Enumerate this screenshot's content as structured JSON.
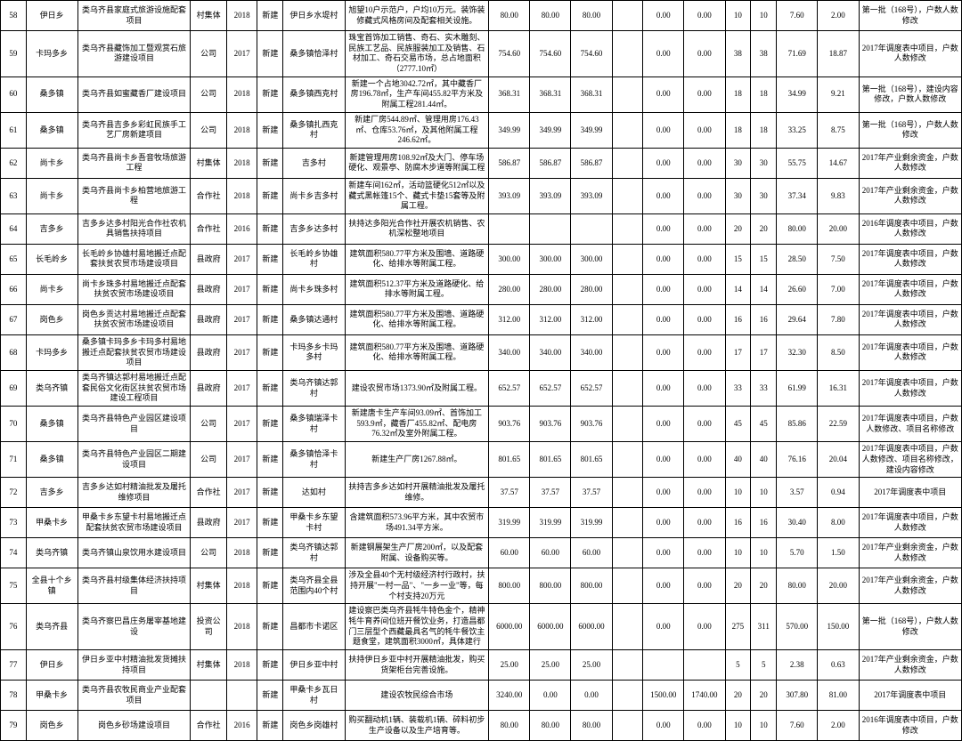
{
  "table": {
    "font_size": 9,
    "border_color": "#000000",
    "background": "#ffffff",
    "text_color": "#000000",
    "rows": [
      {
        "num": "58",
        "township": "伊日乡",
        "project": "类乌齐县家庭式旅游设施配套项目",
        "unit": "村集体",
        "year": "2018",
        "type": "新建",
        "location": "伊日乡水堤村",
        "content": "旭望10户示范户，户均10万元。装饰装修藏式风格房间及配套相关设施。",
        "v1": "80.00",
        "v2": "80.00",
        "v3": "80.00",
        "v4": "",
        "v5": "0.00",
        "v6": "0.00",
        "v7": "10",
        "v8": "10",
        "v9": "7.60",
        "v10": "2.00",
        "remark": "第一批（168号），户数人数修改"
      },
      {
        "num": "59",
        "township": "卡玛多乡",
        "project": "类乌齐县藏饰加工暨观赏石旅游建设项目",
        "unit": "公司",
        "year": "2017",
        "type": "新建",
        "location": "桑多镇恰泽村",
        "content": "珠宝首饰加工销售、奇石、实木雕刻、民族工艺品、民族服装加工及销售、石材加工、奇石交易市场，总占地面积（2777.10㎡）",
        "v1": "754.60",
        "v2": "754.60",
        "v3": "754.60",
        "v4": "",
        "v5": "0.00",
        "v6": "0.00",
        "v7": "38",
        "v8": "38",
        "v9": "71.69",
        "v10": "18.87",
        "remark": "2017年调度表中项目，户数人数修改"
      },
      {
        "num": "60",
        "township": "桑多镇",
        "project": "类乌齐县如蜜藏香厂建设项目",
        "unit": "公司",
        "year": "2018",
        "type": "新建",
        "location": "桑多镇西克村",
        "content": "新建一个占地3042.72㎡，其中藏香厂房196.78㎡，生产车间455.82平方米及附属工程281.44㎡。",
        "v1": "368.31",
        "v2": "368.31",
        "v3": "368.31",
        "v4": "",
        "v5": "0.00",
        "v6": "0.00",
        "v7": "18",
        "v8": "18",
        "v9": "34.99",
        "v10": "9.21",
        "remark": "第一批（168号），建设内容修改，户数人数修改"
      },
      {
        "num": "61",
        "township": "桑多镇",
        "project": "类乌齐县吉多乡彩虹民族手工艺厂房新建项目",
        "unit": "公司",
        "year": "2018",
        "type": "新建",
        "location": "桑多镇扎西克村",
        "content": "新建厂房544.89㎡、管理用房176.43㎡、仓库53.76㎡，及其他附属工程246.62㎡。",
        "v1": "349.99",
        "v2": "349.99",
        "v3": "349.99",
        "v4": "",
        "v5": "0.00",
        "v6": "0.00",
        "v7": "18",
        "v8": "18",
        "v9": "33.25",
        "v10": "8.75",
        "remark": "第一批（168号），户数人数修改"
      },
      {
        "num": "62",
        "township": "尚卡乡",
        "project": "类乌齐县尚卡乡吾音牧场旅游工程",
        "unit": "村集体",
        "year": "2018",
        "type": "新建",
        "location": "吉多村",
        "content": "新建管理用房108.92㎡及大门、停车场硬化、观景亭、防腐木步道等附属工程",
        "v1": "586.87",
        "v2": "586.87",
        "v3": "586.87",
        "v4": "",
        "v5": "0.00",
        "v6": "0.00",
        "v7": "30",
        "v8": "30",
        "v9": "55.75",
        "v10": "14.67",
        "remark": "2017年产业剩余资金，户数人数修改"
      },
      {
        "num": "63",
        "township": "尚卡乡",
        "project": "类乌齐县尚卡乡柏营地旅游工程",
        "unit": "合作社",
        "year": "2018",
        "type": "新建",
        "location": "尚卡乡吉多村",
        "content": "新建车间162㎡，活动篮硬化512㎡以及藏式黑帐篷15个、藏式卡垫15套等及附属工程。",
        "v1": "393.09",
        "v2": "393.09",
        "v3": "393.09",
        "v4": "",
        "v5": "0.00",
        "v6": "0.00",
        "v7": "30",
        "v8": "30",
        "v9": "37.34",
        "v10": "9.83",
        "remark": "2017年产业剩余资金，户数人数修改"
      },
      {
        "num": "64",
        "township": "吉多乡",
        "project": "吉多乡达多村阳光合作社农机具销售扶持项目",
        "unit": "合作社",
        "year": "2016",
        "type": "新建",
        "location": "吉多乡达多村",
        "content": "扶持达多阳光合作社开展农机销售、农机深松整地项目",
        "v1": "",
        "v2": "",
        "v3": "",
        "v4": "",
        "v5": "0.00",
        "v6": "0.00",
        "v7": "20",
        "v8": "20",
        "v9": "80.00",
        "v10": "20.00",
        "remark": "2016年调度表中项目，户数人数修改"
      },
      {
        "num": "65",
        "township": "长毛岭乡",
        "project": "长毛岭乡协雄村易地搬迁点配套扶贫农贸市场建设项目",
        "unit": "县政府",
        "year": "2017",
        "type": "新建",
        "location": "长毛岭乡协雄村",
        "content": "建筑面积580.77平方米及围墙、道路硬化、给排水等附属工程。",
        "v1": "300.00",
        "v2": "300.00",
        "v3": "300.00",
        "v4": "",
        "v5": "0.00",
        "v6": "0.00",
        "v7": "15",
        "v8": "15",
        "v9": "28.50",
        "v10": "7.50",
        "remark": "2017年调度表中项目，户数人数修改"
      },
      {
        "num": "66",
        "township": "尚卡乡",
        "project": "尚卡乡珠多村易地搬迁点配套扶贫农贸市场建设项目",
        "unit": "县政府",
        "year": "2017",
        "type": "新建",
        "location": "尚卡乡珠多村",
        "content": "建筑面积512.37平方米及道路硬化、给排水等附属工程。",
        "v1": "280.00",
        "v2": "280.00",
        "v3": "280.00",
        "v4": "",
        "v5": "0.00",
        "v6": "0.00",
        "v7": "14",
        "v8": "14",
        "v9": "26.60",
        "v10": "7.00",
        "remark": "2017年调度表中项目，户数人数修改"
      },
      {
        "num": "67",
        "township": "岗色乡",
        "project": "岗色乡贡达村易地搬迁点配套扶贫农贸市场建设项目",
        "unit": "县政府",
        "year": "2017",
        "type": "新建",
        "location": "桑多镇达通村",
        "content": "建筑面积580.77平方米及围墙、道路硬化、给排水等附属工程。",
        "v1": "312.00",
        "v2": "312.00",
        "v3": "312.00",
        "v4": "",
        "v5": "0.00",
        "v6": "0.00",
        "v7": "16",
        "v8": "16",
        "v9": "29.64",
        "v10": "7.80",
        "remark": "2017年调度表中项目，户数人数修改"
      },
      {
        "num": "68",
        "township": "卡玛多乡",
        "project": "桑多镇卡玛多乡卡玛多村易地搬迁点配套扶贫农贸市场建设项目",
        "unit": "县政府",
        "year": "2017",
        "type": "新建",
        "location": "卡玛多乡卡玛多村",
        "content": "建筑面积580.77平方米及围墙、道路硬化、给排水等附属工程。",
        "v1": "340.00",
        "v2": "340.00",
        "v3": "340.00",
        "v4": "",
        "v5": "0.00",
        "v6": "0.00",
        "v7": "17",
        "v8": "17",
        "v9": "32.30",
        "v10": "8.50",
        "remark": "2017年调度表中项目，户数人数修改"
      },
      {
        "num": "69",
        "township": "类乌齐镇",
        "project": "类乌齐镇达郭村易地搬迁点配套民俗文化街区扶贫农贸市场建设工程项目",
        "unit": "县政府",
        "year": "2017",
        "type": "新建",
        "location": "类乌齐镇达郭村",
        "content": "建设农贸市场1373.90㎡及附属工程。",
        "v1": "652.57",
        "v2": "652.57",
        "v3": "652.57",
        "v4": "",
        "v5": "0.00",
        "v6": "0.00",
        "v7": "33",
        "v8": "33",
        "v9": "61.99",
        "v10": "16.31",
        "remark": "2017年调度表中项目，户数人数修改"
      },
      {
        "num": "70",
        "township": "桑多镇",
        "project": "类乌齐县特色产业园区建设项目",
        "unit": "公司",
        "year": "2017",
        "type": "新建",
        "location": "桑多镇瑞泽卡村",
        "content": "新建唐卡生产车间93.09㎡、首饰加工593.9㎡，藏香厂455.82㎡、配电房76.32㎡及室外附属工程。",
        "v1": "903.76",
        "v2": "903.76",
        "v3": "903.76",
        "v4": "",
        "v5": "0.00",
        "v6": "0.00",
        "v7": "45",
        "v8": "45",
        "v9": "85.86",
        "v10": "22.59",
        "remark": "2017年调度表中项目，户数人数修改、项目名称修改"
      },
      {
        "num": "71",
        "township": "桑多镇",
        "project": "类乌齐县特色产业园区二期建设项目",
        "unit": "公司",
        "year": "2017",
        "type": "新建",
        "location": "桑多镇恰泽卡村",
        "content": "新建生产厂房1267.88㎡。",
        "v1": "801.65",
        "v2": "801.65",
        "v3": "801.65",
        "v4": "",
        "v5": "0.00",
        "v6": "0.00",
        "v7": "40",
        "v8": "40",
        "v9": "76.16",
        "v10": "20.04",
        "remark": "2017年调度表中项目，户数人数修改、项目名称修改，建设内容修改"
      },
      {
        "num": "72",
        "township": "吉多乡",
        "project": "吉多乡达如村精油批发及屠托维修项目",
        "unit": "合作社",
        "year": "2017",
        "type": "新建",
        "location": "达如村",
        "content": "扶持吉多乡达如村开展精油批发及屠托维修。",
        "v1": "37.57",
        "v2": "37.57",
        "v3": "37.57",
        "v4": "",
        "v5": "0.00",
        "v6": "0.00",
        "v7": "10",
        "v8": "10",
        "v9": "3.57",
        "v10": "0.94",
        "remark": "2017年调度表中项目"
      },
      {
        "num": "73",
        "township": "甲桑卡乡",
        "project": "甲桑卡乡东望卡村易地搬迁点配套扶贫农贸市场建设项目",
        "unit": "县政府",
        "year": "2017",
        "type": "新建",
        "location": "甲桑卡乡东望卡村",
        "content": "含建筑面积573.96平方米，其中农贸市场491.34平方米。",
        "v1": "319.99",
        "v2": "319.99",
        "v3": "319.99",
        "v4": "",
        "v5": "0.00",
        "v6": "0.00",
        "v7": "16",
        "v8": "16",
        "v9": "30.40",
        "v10": "8.00",
        "remark": "2017年调度表中项目，户数人数修改"
      },
      {
        "num": "74",
        "township": "类乌齐镇",
        "project": "类乌齐镇山泉饮用水建设项目",
        "unit": "公司",
        "year": "2018",
        "type": "新建",
        "location": "类乌齐镇达郭村",
        "content": "新建钢展架生产厂房200㎡，以及配套附属、设备购买等。",
        "v1": "60.00",
        "v2": "60.00",
        "v3": "60.00",
        "v4": "",
        "v5": "0.00",
        "v6": "0.00",
        "v7": "10",
        "v8": "10",
        "v9": "5.70",
        "v10": "1.50",
        "remark": "2017年产业剩余资金，户数人数修改"
      },
      {
        "num": "75",
        "township": "全县十个乡镇",
        "project": "类乌齐县村级集体经济扶持项目",
        "unit": "村集体",
        "year": "2018",
        "type": "新建",
        "location": "类乌齐县全县范围内40个村",
        "content": "涉及全县40个无村级经济村行政村，扶持开展\"一村一品\"、\"一乡一业\"等，每个村支持20万元",
        "v1": "800.00",
        "v2": "800.00",
        "v3": "800.00",
        "v4": "",
        "v5": "0.00",
        "v6": "0.00",
        "v7": "20",
        "v8": "20",
        "v9": "80.00",
        "v10": "20.00",
        "remark": "2017年产业剩余资金，户数人数修改"
      },
      {
        "num": "76",
        "township": "类乌齐县",
        "project": "类乌齐察巴昌庄务屠宰基地建设",
        "unit": "投资公司",
        "year": "2018",
        "type": "新建",
        "location": "昌都市卡诺区",
        "content": "建设察巴类乌齐县牦牛特色金个，精神牦牛育养间位班开餐饮业务，打造昌都门三层型个西藏最具名气的牦牛餐饮主题食堂，建筑面积3000㎡，具体建行",
        "v1": "6000.00",
        "v2": "6000.00",
        "v3": "6000.00",
        "v4": "",
        "v5": "0.00",
        "v6": "0.00",
        "v7": "275",
        "v8": "311",
        "v9": "570.00",
        "v10": "150.00",
        "remark": "第一批（168号），户数人数修改"
      },
      {
        "num": "77",
        "township": "伊日乡",
        "project": "伊日乡亚中村精油批发货摊扶持项目",
        "unit": "村集体",
        "year": "2018",
        "type": "新建",
        "location": "伊日乡亚中村",
        "content": "扶持伊日乡亚中村开展精油批发，购买货架柜台完善设施。",
        "v1": "25.00",
        "v2": "25.00",
        "v3": "25.00",
        "v4": "",
        "v5": "",
        "v6": "",
        "v7": "5",
        "v8": "5",
        "v9": "2.38",
        "v10": "0.63",
        "remark": "2017年产业剩余资金，户数人数修改"
      },
      {
        "num": "78",
        "township": "甲桑卡乡",
        "project": "类乌齐县农牧民商业产业配套项目",
        "unit": "",
        "year": "",
        "type": "新建",
        "location": "甲桑卡乡瓦日村",
        "content": "建设农牧民综合市场",
        "v1": "3240.00",
        "v2": "0.00",
        "v3": "0.00",
        "v4": "",
        "v5": "1500.00",
        "v6": "1740.00",
        "v7": "20",
        "v8": "20",
        "v9": "307.80",
        "v10": "81.00",
        "remark": "2017年调度表中项目"
      },
      {
        "num": "79",
        "township": "岗色乡",
        "project": "岗色乡砂场建设项目",
        "unit": "合作社",
        "year": "2016",
        "type": "新建",
        "location": "岗色乡岗雄村",
        "content": "购买翻动机1辆、装载机1辆、碎料初步生产设备以及生产培育等。",
        "v1": "80.00",
        "v2": "80.00",
        "v3": "80.00",
        "v4": "",
        "v5": "0.00",
        "v6": "0.00",
        "v7": "10",
        "v8": "10",
        "v9": "7.60",
        "v10": "2.00",
        "remark": "2016年调度表中项目，户数修改"
      }
    ]
  }
}
